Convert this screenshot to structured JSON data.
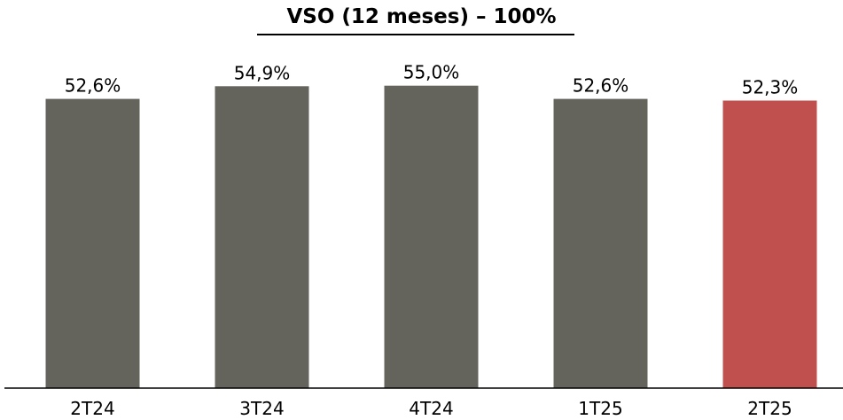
{
  "chart_data": {
    "type": "bar",
    "title": "VSO (12 meses) – 100%",
    "xlabel": "",
    "ylabel": "",
    "categories": [
      "2T24",
      "3T24",
      "4T24",
      "1T25",
      "2T25"
    ],
    "values": [
      52.6,
      54.9,
      55.0,
      52.6,
      52.3
    ],
    "data_labels": [
      "52,6%",
      "54,9%",
      "55,0%",
      "52,6%",
      "52,3%"
    ],
    "ylim": [
      0,
      60
    ],
    "grid": false,
    "legend": "none",
    "colors": {
      "default_bar": "#65645c",
      "highlight_bar": "#c0504d",
      "axis": "#000000"
    },
    "highlight_index": 4
  }
}
